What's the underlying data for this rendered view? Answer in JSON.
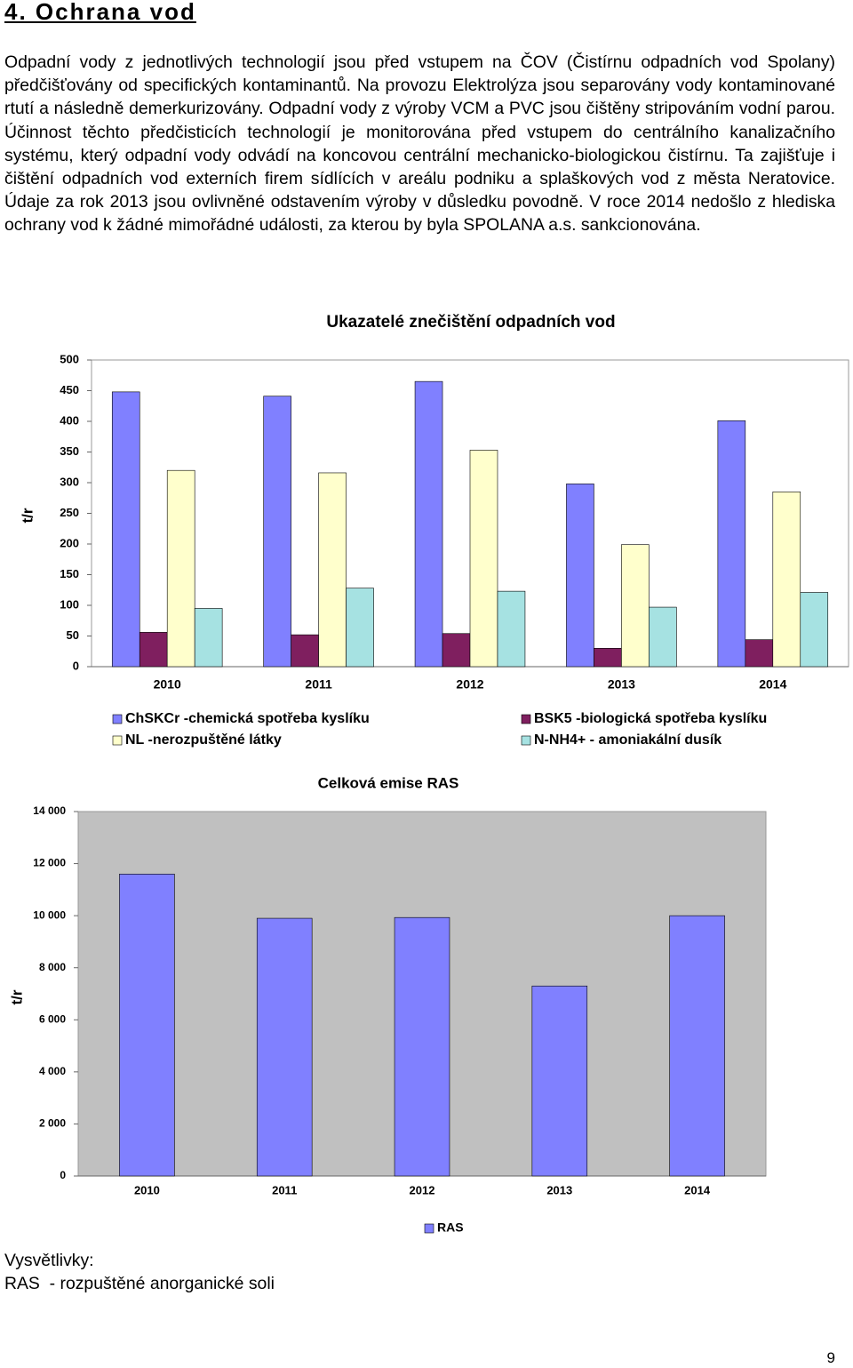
{
  "heading": "4. Ochrana vod",
  "paragraph": "Odpadní vody z jednotlivých technologií jsou před vstupem na ČOV (Čistírnu odpadních vod Spolany) předčišťovány od specifických kontaminantů. Na provozu Elektrolýza jsou separovány vody kontaminované rtutí a následně demerkurizovány. Odpadní vody z výroby VCM a PVC jsou čištěny stripováním vodní parou. Účinnost těchto předčisticích technologií je monitorována před vstupem do centrálního kanalizačního systému, který odpadní vody odvádí na koncovou centrální mechanicko-biologickou čistírnu. Ta zajišťuje i čištění odpadních vod externích firem sídlících v areálu podniku a splaškových vod z města Neratovice. Údaje za rok 2013 jsou ovlivněné odstavením výroby v důsledku povodně. V roce 2014 nedošlo z hlediska ochrany vod k žádné mimořádné události, za kterou by byla SPOLANA a.s. sankcionována.",
  "chart_data": [
    {
      "type": "bar",
      "title": "Ukazatelé znečištění odpadních vod",
      "y_label": "t/r",
      "categories": [
        "2010",
        "2011",
        "2012",
        "2013",
        "2014"
      ],
      "series": [
        {
          "name": "ChSKCr -chemická spotřeba kyslíku",
          "color": "#8080ff",
          "values": [
            448,
            441,
            465,
            298,
            401
          ]
        },
        {
          "name": "BSK5 -biologická spotřeba kyslíku",
          "color": "#7f1f5f",
          "values": [
            56,
            52,
            54,
            30,
            44
          ]
        },
        {
          "name": "NL -nerozpuštěné látky",
          "color": "#ffffcc",
          "values": [
            320,
            316,
            353,
            199,
            285
          ]
        },
        {
          "name": "N-NH4+ - amoniakální dusík",
          "color": "#a6e2e2",
          "values": [
            95,
            128,
            123,
            97,
            121
          ]
        }
      ],
      "ylim": [
        0,
        500
      ],
      "yticks": [
        0,
        50,
        100,
        150,
        200,
        250,
        300,
        350,
        400,
        450,
        500
      ],
      "grid": false,
      "plot_background": "#ffffff",
      "legend": "bottom"
    },
    {
      "type": "bar",
      "title": "Celková emise RAS",
      "y_label": "t/r",
      "categories": [
        "2010",
        "2011",
        "2012",
        "2013",
        "2014"
      ],
      "series": [
        {
          "name": "RAS",
          "color": "#8080ff",
          "values": [
            11600,
            9900,
            9930,
            7300,
            10000
          ]
        }
      ],
      "ylim": [
        0,
        14000
      ],
      "yticks": [
        0,
        {
          "value": 2000,
          "label": "2 000"
        },
        {
          "value": 4000,
          "label": "4 000"
        },
        {
          "value": 6000,
          "label": "6 000"
        },
        {
          "value": 8000,
          "label": "8 000"
        },
        {
          "value": 10000,
          "label": "10 000"
        },
        {
          "value": 12000,
          "label": "12 000"
        },
        {
          "value": 14000,
          "label": "14 000"
        }
      ],
      "grid": false,
      "plot_background": "#c0c0c0",
      "legend": "bottom"
    }
  ],
  "notes": {
    "title": "Vysvětlivky:",
    "items": [
      "RAS  - rozpuštěné anorganické soli"
    ]
  },
  "page_number": 9
}
